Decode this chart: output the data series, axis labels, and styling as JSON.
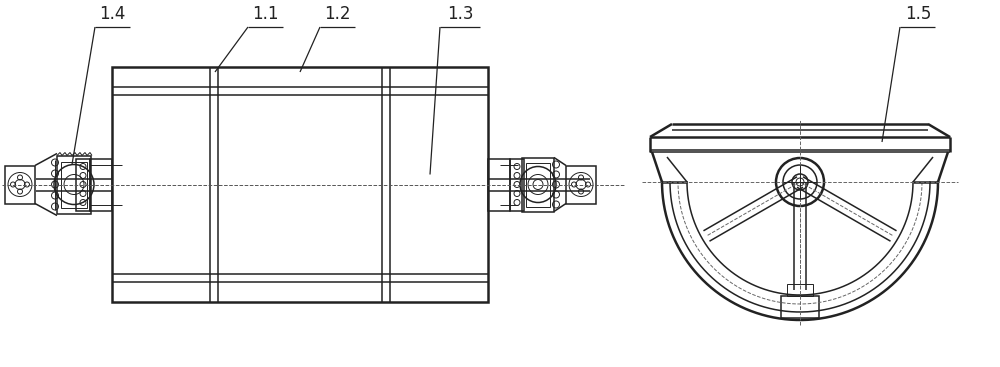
{
  "bg_color": "#ffffff",
  "line_color": "#222222",
  "label_14": "1.4",
  "label_11": "1.1",
  "label_12": "1.2",
  "label_13": "1.3",
  "label_15": "1.5",
  "label_fontsize": 12,
  "fig_width": 10.0,
  "fig_height": 3.67
}
